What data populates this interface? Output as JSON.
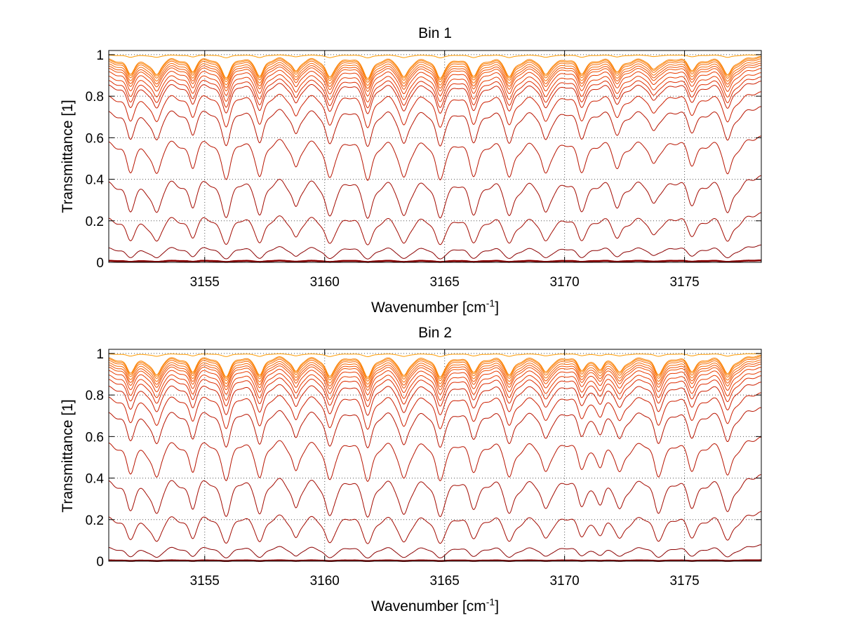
{
  "chart_data": [
    {
      "type": "line",
      "title": "Bin 1",
      "xlabel": "Wavenumber [cm",
      "xlabel_sup": "-1",
      "xlabel_close": "]",
      "ylabel": "Transmittance [1]",
      "xlim": [
        3151,
        3178.2
      ],
      "ylim": [
        0,
        1.02
      ],
      "xticks": [
        3155,
        3160,
        3165,
        3170,
        3175
      ],
      "xtick_labels": [
        "3155",
        "3160",
        "3165",
        "3170",
        "3175"
      ],
      "yticks": [
        0,
        0.2,
        0.4,
        0.6,
        0.8,
        1
      ],
      "ytick_labels": [
        "0",
        "0.2",
        "0.4",
        "0.6",
        "0.8",
        "1"
      ],
      "grid": true,
      "line_colors": [
        "#8b0000",
        "#a30a00",
        "#b81400",
        "#cc1f00",
        "#dd2c00",
        "#e83c00",
        "#f05000",
        "#f76800",
        "#fb8000",
        "#fd9a00"
      ],
      "series_baseline": [
        0.01,
        0.09,
        0.25,
        0.43,
        0.62,
        0.76,
        0.83,
        0.88,
        0.9,
        0.92,
        0.94,
        0.955,
        0.965,
        0.975,
        0.985,
        0.992,
        0.997,
        1.0
      ],
      "absorption_lines": [
        {
          "x": 3151.9,
          "depth": 0.55,
          "width": 0.22
        },
        {
          "x": 3153.0,
          "depth": 0.55,
          "width": 0.22
        },
        {
          "x": 3154.5,
          "depth": 0.4,
          "width": 0.18
        },
        {
          "x": 3155.9,
          "depth": 0.6,
          "width": 0.22
        },
        {
          "x": 3157.3,
          "depth": 0.55,
          "width": 0.2
        },
        {
          "x": 3158.8,
          "depth": 0.4,
          "width": 0.18
        },
        {
          "x": 3160.2,
          "depth": 0.6,
          "width": 0.22
        },
        {
          "x": 3161.8,
          "depth": 0.62,
          "width": 0.22
        },
        {
          "x": 3163.3,
          "depth": 0.6,
          "width": 0.22
        },
        {
          "x": 3164.8,
          "depth": 0.62,
          "width": 0.22
        },
        {
          "x": 3166.2,
          "depth": 0.55,
          "width": 0.22
        },
        {
          "x": 3167.7,
          "depth": 0.6,
          "width": 0.22
        },
        {
          "x": 3169.2,
          "depth": 0.55,
          "width": 0.22
        },
        {
          "x": 3170.7,
          "depth": 0.5,
          "width": 0.22
        },
        {
          "x": 3172.2,
          "depth": 0.45,
          "width": 0.22
        },
        {
          "x": 3173.7,
          "depth": 0.4,
          "width": 0.22
        },
        {
          "x": 3175.3,
          "depth": 0.38,
          "width": 0.22
        },
        {
          "x": 3176.8,
          "depth": 0.58,
          "width": 0.22
        }
      ]
    },
    {
      "type": "line",
      "title": "Bin 2",
      "xlabel": "Wavenumber [cm",
      "xlabel_sup": "-1",
      "xlabel_close": "]",
      "ylabel": "Transmittance [1]",
      "xlim": [
        3151,
        3178.2
      ],
      "ylim": [
        0,
        1.02
      ],
      "xticks": [
        3155,
        3160,
        3165,
        3170,
        3175
      ],
      "xtick_labels": [
        "3155",
        "3160",
        "3165",
        "3170",
        "3175"
      ],
      "yticks": [
        0,
        0.2,
        0.4,
        0.6,
        0.8,
        1
      ],
      "ytick_labels": [
        "0",
        "0.2",
        "0.4",
        "0.6",
        "0.8",
        "1"
      ],
      "grid": true,
      "line_colors": [
        "#8b0000",
        "#a30a00",
        "#b81400",
        "#cc1f00",
        "#dd2c00",
        "#e83c00",
        "#f05000",
        "#f76800",
        "#fb8000",
        "#fd9a00"
      ],
      "series_baseline": [
        0.005,
        0.085,
        0.25,
        0.43,
        0.61,
        0.75,
        0.82,
        0.87,
        0.9,
        0.92,
        0.94,
        0.955,
        0.965,
        0.975,
        0.985,
        0.992,
        0.997,
        1.0
      ],
      "absorption_lines": [
        {
          "x": 3151.9,
          "depth": 0.55,
          "width": 0.22
        },
        {
          "x": 3153.0,
          "depth": 0.6,
          "width": 0.22
        },
        {
          "x": 3154.5,
          "depth": 0.45,
          "width": 0.18
        },
        {
          "x": 3155.9,
          "depth": 0.6,
          "width": 0.22
        },
        {
          "x": 3157.3,
          "depth": 0.55,
          "width": 0.2
        },
        {
          "x": 3158.8,
          "depth": 0.45,
          "width": 0.18
        },
        {
          "x": 3160.2,
          "depth": 0.62,
          "width": 0.22
        },
        {
          "x": 3161.8,
          "depth": 0.62,
          "width": 0.22
        },
        {
          "x": 3163.3,
          "depth": 0.6,
          "width": 0.22
        },
        {
          "x": 3164.8,
          "depth": 0.62,
          "width": 0.22
        },
        {
          "x": 3166.2,
          "depth": 0.45,
          "width": 0.22
        },
        {
          "x": 3167.7,
          "depth": 0.58,
          "width": 0.22
        },
        {
          "x": 3169.2,
          "depth": 0.5,
          "width": 0.22
        },
        {
          "x": 3170.7,
          "depth": 0.4,
          "width": 0.2
        },
        {
          "x": 3171.5,
          "depth": 0.35,
          "width": 0.2
        },
        {
          "x": 3172.3,
          "depth": 0.48,
          "width": 0.22
        },
        {
          "x": 3173.9,
          "depth": 0.55,
          "width": 0.22
        },
        {
          "x": 3175.3,
          "depth": 0.45,
          "width": 0.22
        },
        {
          "x": 3176.8,
          "depth": 0.58,
          "width": 0.22
        }
      ]
    }
  ]
}
